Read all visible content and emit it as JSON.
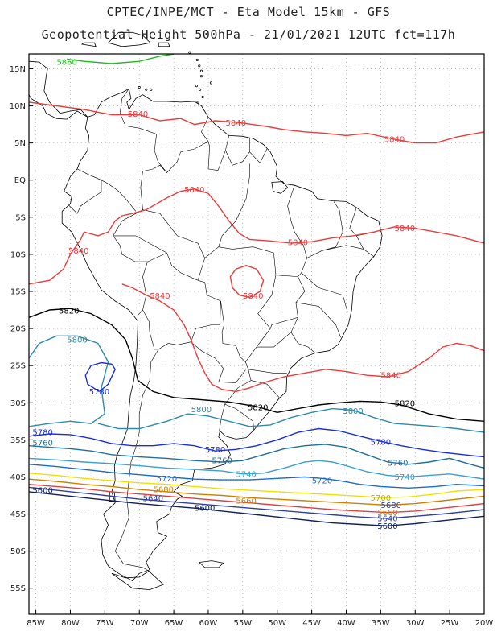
{
  "header": {
    "line1": "CPTEC/INPE/MCT -  Eta Model 15km - GFS",
    "line2": "Geopotential Height 500hPa - 21/01/2021 12UTC fct=117h"
  },
  "map": {
    "lon_range": [
      -86,
      -20
    ],
    "lat_range": [
      17,
      -58.5
    ],
    "lat_ticks": [
      "15N",
      "10N",
      "5N",
      "EQ",
      "5S",
      "10S",
      "15S",
      "20S",
      "25S",
      "30S",
      "35S",
      "40S",
      "45S",
      "50S",
      "55S"
    ],
    "lon_ticks": [
      "85W",
      "80W",
      "75W",
      "70W",
      "65W",
      "60W",
      "55W",
      "50W",
      "45W",
      "40W",
      "35W",
      "30W",
      "25W",
      "20W"
    ],
    "contour_colors": {
      "5860": "#22bb22",
      "5840": "#ee3b3b",
      "5820": "#000000",
      "5800": "#2e8bb0",
      "5780": "#1a2fe0",
      "5760": "#1f6fa0",
      "5740": "#3aa0d0",
      "5720": "#1a6cd0",
      "5700": "#f0e000",
      "5680": "#d08000",
      "5660": "#e04040",
      "5640": "#3040a0",
      "5600": "#102060"
    },
    "contour_labels": [
      {
        "text": "5860",
        "color": "#22bb22",
        "lon": -80.5,
        "lat": 15.9
      },
      {
        "text": "5840",
        "color": "#ee3b3b",
        "lon": -70.2,
        "lat": 8.9
      },
      {
        "text": "5840",
        "color": "#ee3b3b",
        "lon": -56.0,
        "lat": 7.7
      },
      {
        "text": "5840",
        "color": "#ee3b3b",
        "lon": -33.0,
        "lat": 5.5
      },
      {
        "text": "5840",
        "color": "#ee3b3b",
        "lon": -62.0,
        "lat": -1.3
      },
      {
        "text": "5840",
        "color": "#ee3b3b",
        "lon": -47.0,
        "lat": -8.4
      },
      {
        "text": "5840",
        "color": "#ee3b3b",
        "lon": -31.5,
        "lat": -6.5
      },
      {
        "text": "5840",
        "color": "#ee3b3b",
        "lon": -78.8,
        "lat": -9.5
      },
      {
        "text": "5840",
        "color": "#ee3b3b",
        "lon": -53.5,
        "lat": -15.6
      },
      {
        "text": "5840",
        "color": "#ee3b3b",
        "lon": -67.0,
        "lat": -15.6
      },
      {
        "text": "5840",
        "color": "#ee3b3b",
        "lon": -33.5,
        "lat": -26.3
      },
      {
        "text": "5820",
        "color": "#000000",
        "lon": -80.2,
        "lat": -17.6
      },
      {
        "text": "5820",
        "color": "#000000",
        "lon": -52.8,
        "lat": -30.6
      },
      {
        "text": "5820",
        "color": "#000000",
        "lon": -31.5,
        "lat": -30.1
      },
      {
        "text": "5800",
        "color": "#2e8bb0",
        "lon": -79.0,
        "lat": -21.5
      },
      {
        "text": "5800",
        "color": "#2e8bb0",
        "lon": -61.0,
        "lat": -30.9
      },
      {
        "text": "5800",
        "color": "#2e8bb0",
        "lon": -39.0,
        "lat": -31.1
      },
      {
        "text": "5780",
        "color": "#1a2fe0",
        "lon": -75.8,
        "lat": -28.5
      },
      {
        "text": "5780",
        "color": "#1a2fe0",
        "lon": -84.0,
        "lat": -34.0
      },
      {
        "text": "5780",
        "color": "#1a2fe0",
        "lon": -59.0,
        "lat": -36.3
      },
      {
        "text": "5780",
        "color": "#1a2fe0",
        "lon": -35.0,
        "lat": -35.3
      },
      {
        "text": "5760",
        "color": "#1f6fa0",
        "lon": -84.0,
        "lat": -35.4
      },
      {
        "text": "5760",
        "color": "#1f6fa0",
        "lon": -58.0,
        "lat": -37.8
      },
      {
        "text": "5760",
        "color": "#1f6fa0",
        "lon": -32.5,
        "lat": -38.1
      },
      {
        "text": "5740",
        "color": "#3aa0d0",
        "lon": -54.5,
        "lat": -39.6
      },
      {
        "text": "5740",
        "color": "#3aa0d0",
        "lon": -31.5,
        "lat": -40.0
      },
      {
        "text": "5720",
        "color": "#1a6cd0",
        "lon": -66.0,
        "lat": -40.2
      },
      {
        "text": "5720",
        "color": "#1a6cd0",
        "lon": -43.5,
        "lat": -40.5
      },
      {
        "text": "5700",
        "color": "#c0b000",
        "lon": -35.0,
        "lat": -42.8
      },
      {
        "text": "5680",
        "color": "#d08000",
        "lon": -66.5,
        "lat": -41.7
      },
      {
        "text": "5680",
        "color": "#3040a0",
        "lon": -33.5,
        "lat": -43.8
      },
      {
        "text": "5660",
        "color": "#d08000",
        "lon": -54.5,
        "lat": -43.2
      },
      {
        "text": "5660",
        "color": "#d08000",
        "lon": -34.0,
        "lat": -44.8
      },
      {
        "text": "5640",
        "color": "#3040a0",
        "lon": -68.0,
        "lat": -42.9
      },
      {
        "text": "5640",
        "color": "#3040a0",
        "lon": -34.0,
        "lat": -45.6
      },
      {
        "text": "5600",
        "color": "#102060",
        "lon": -60.5,
        "lat": -44.2
      },
      {
        "text": "5600",
        "color": "#102060",
        "lon": -84.0,
        "lat": -41.8
      },
      {
        "text": "5600",
        "color": "#102060",
        "lon": -34.0,
        "lat": -46.6
      }
    ]
  }
}
